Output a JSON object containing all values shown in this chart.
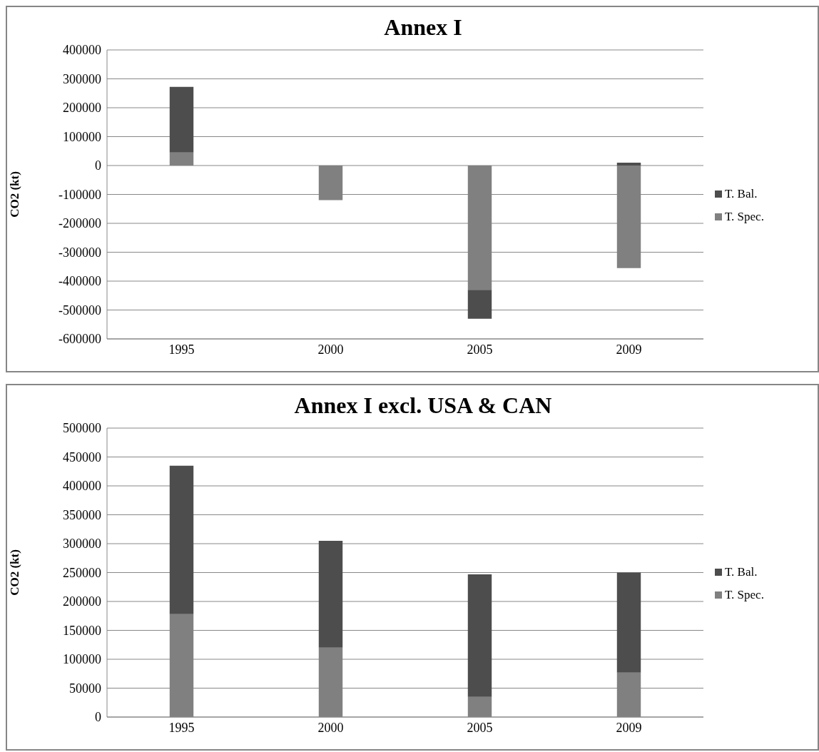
{
  "chart_data": [
    {
      "type": "bar",
      "title": "Annex I",
      "ylabel": "CO2 (kt)",
      "categories": [
        "1995",
        "2000",
        "2005",
        "2009"
      ],
      "stacked": true,
      "ylim": [
        -600000,
        400000
      ],
      "yticks": [
        -600000,
        -500000,
        -400000,
        -300000,
        -200000,
        -100000,
        0,
        100000,
        200000,
        300000,
        400000
      ],
      "grid": "y",
      "legend": "right",
      "series": [
        {
          "name": "T. Spec.",
          "color": "#808080",
          "values": [
            45000,
            -120000,
            -430000,
            -355000
          ]
        },
        {
          "name": "T. Bal.",
          "color": "#4d4d4d",
          "values": [
            227000,
            0,
            -100000,
            10000
          ]
        }
      ]
    },
    {
      "type": "bar",
      "title": "Annex I excl. USA & CAN",
      "ylabel": "CO2 (kt)",
      "categories": [
        "1995",
        "2000",
        "2005",
        "2009"
      ],
      "stacked": true,
      "ylim": [
        0,
        500000
      ],
      "yticks": [
        0,
        50000,
        100000,
        150000,
        200000,
        250000,
        300000,
        350000,
        400000,
        450000,
        500000
      ],
      "grid": "y",
      "legend": "right",
      "series": [
        {
          "name": "T. Spec.",
          "color": "#808080",
          "values": [
            178000,
            120000,
            35000,
            77000
          ]
        },
        {
          "name": "T. Bal.",
          "color": "#4d4d4d",
          "values": [
            257000,
            185000,
            212000,
            173000
          ]
        }
      ]
    }
  ]
}
